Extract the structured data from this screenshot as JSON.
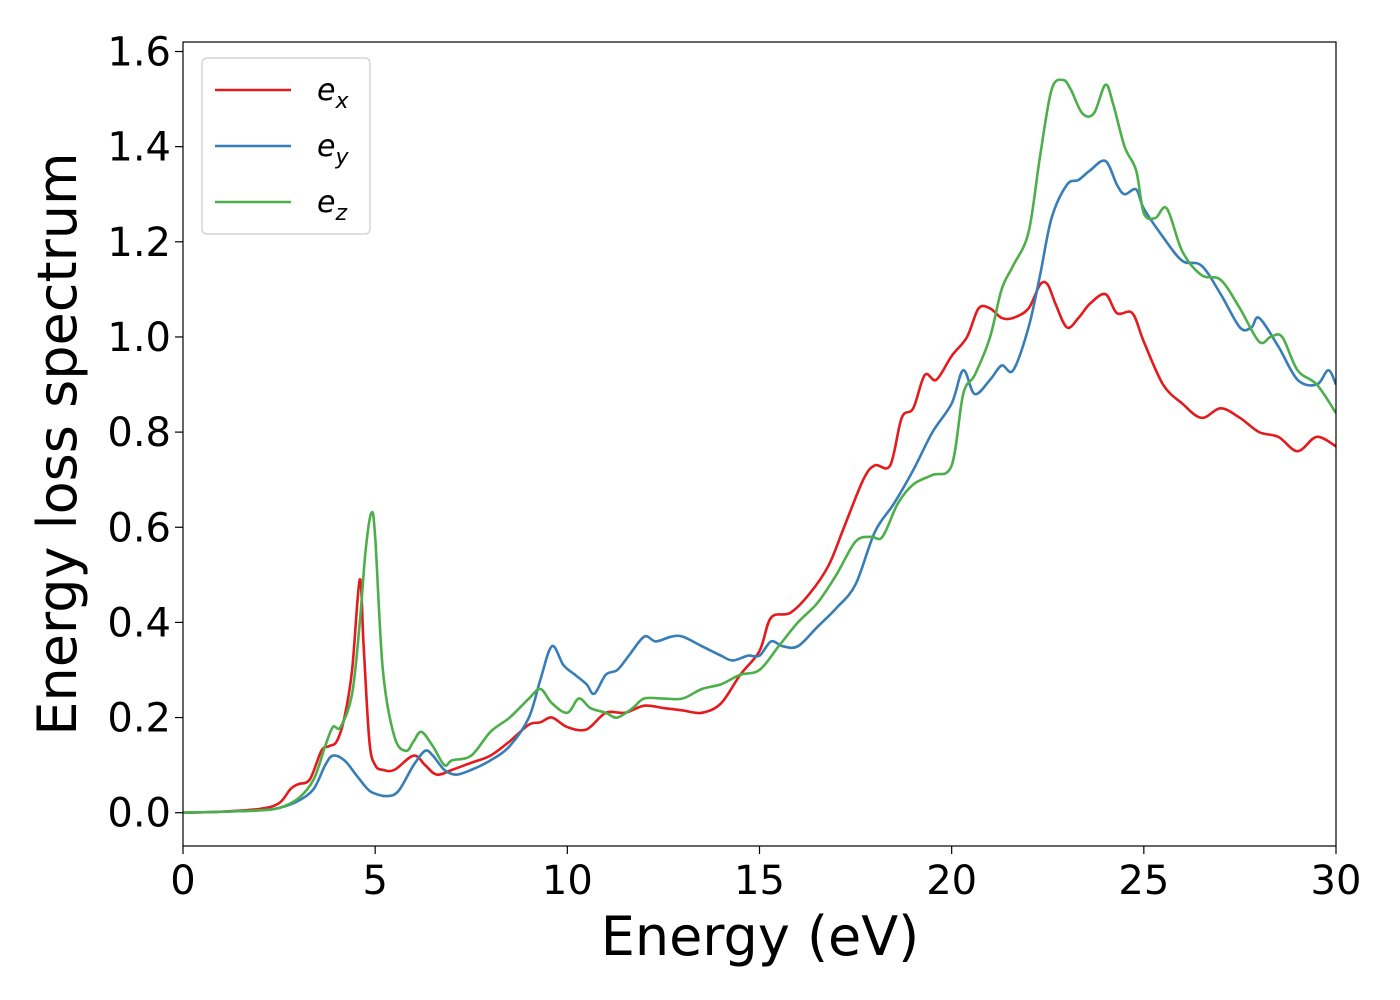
{
  "chart_data": {
    "type": "line",
    "title": "",
    "xlabel": "Energy (eV)",
    "ylabel": "Energy loss spectrum",
    "xlim": [
      0,
      30
    ],
    "ylim": [
      -0.07,
      1.62
    ],
    "xticks": [
      0,
      5,
      10,
      15,
      20,
      25,
      30
    ],
    "yticks": [
      0.0,
      0.2,
      0.4,
      0.6,
      0.8,
      1.0,
      1.2,
      1.4,
      1.6
    ],
    "xtick_labels": [
      "0",
      "5",
      "10",
      "15",
      "20",
      "25",
      "30"
    ],
    "ytick_labels": [
      "0.0",
      "0.2",
      "0.4",
      "0.6",
      "0.8",
      "1.0",
      "1.2",
      "1.4",
      "1.6"
    ],
    "grid": false,
    "legend": {
      "location": "upper-left",
      "frame": true
    },
    "series": [
      {
        "name": "e_x",
        "legend_main": "e",
        "legend_sub": "x",
        "color": "#e41a1c",
        "x": [
          0,
          1,
          2,
          2.5,
          2.8,
          3.0,
          3.3,
          3.6,
          3.8,
          4.0,
          4.2,
          4.4,
          4.6,
          4.7,
          4.85,
          5.0,
          5.2,
          5.5,
          6.0,
          6.3,
          6.6,
          7.0,
          7.5,
          8.0,
          8.5,
          9.0,
          9.3,
          9.6,
          10.0,
          10.5,
          11.0,
          11.5,
          12.0,
          12.5,
          13.0,
          13.5,
          14.0,
          14.5,
          15.0,
          15.3,
          15.8,
          16.3,
          16.8,
          17.2,
          17.7,
          18.0,
          18.4,
          18.7,
          19.0,
          19.3,
          19.6,
          20.0,
          20.4,
          20.7,
          21.0,
          21.3,
          21.6,
          22.0,
          22.3,
          22.5,
          22.7,
          23.0,
          23.3,
          23.6,
          24.0,
          24.3,
          24.7,
          25.0,
          25.5,
          26.0,
          26.5,
          27.0,
          27.5,
          28.0,
          28.5,
          29.0,
          29.5,
          30.0
        ],
        "values": [
          0.0,
          0.002,
          0.008,
          0.02,
          0.05,
          0.06,
          0.07,
          0.13,
          0.14,
          0.15,
          0.2,
          0.3,
          0.49,
          0.35,
          0.15,
          0.1,
          0.09,
          0.09,
          0.12,
          0.1,
          0.08,
          0.09,
          0.105,
          0.12,
          0.15,
          0.185,
          0.19,
          0.2,
          0.18,
          0.175,
          0.21,
          0.21,
          0.225,
          0.22,
          0.215,
          0.21,
          0.23,
          0.29,
          0.34,
          0.41,
          0.42,
          0.46,
          0.52,
          0.6,
          0.7,
          0.73,
          0.73,
          0.83,
          0.85,
          0.92,
          0.91,
          0.96,
          1.0,
          1.06,
          1.06,
          1.04,
          1.04,
          1.06,
          1.11,
          1.11,
          1.07,
          1.02,
          1.04,
          1.07,
          1.09,
          1.05,
          1.05,
          0.99,
          0.9,
          0.86,
          0.83,
          0.85,
          0.83,
          0.8,
          0.79,
          0.76,
          0.79,
          0.77
        ]
      },
      {
        "name": "e_y",
        "legend_main": "e",
        "legend_sub": "y",
        "color": "#377eb8",
        "x": [
          0,
          1,
          2,
          2.5,
          3.0,
          3.4,
          3.7,
          3.9,
          4.2,
          4.5,
          4.8,
          5.0,
          5.3,
          5.6,
          6.0,
          6.3,
          6.5,
          6.8,
          7.1,
          7.5,
          8.0,
          8.5,
          9.0,
          9.3,
          9.6,
          9.9,
          10.2,
          10.5,
          10.7,
          11.0,
          11.3,
          11.6,
          12.0,
          12.3,
          12.7,
          13.0,
          13.5,
          14.0,
          14.3,
          14.7,
          15.0,
          15.3,
          15.6,
          16.0,
          16.5,
          17.0,
          17.5,
          18.0,
          18.5,
          19.0,
          19.5,
          20.0,
          20.3,
          20.6,
          21.0,
          21.3,
          21.6,
          22.0,
          22.3,
          22.6,
          23.0,
          23.3,
          23.6,
          24.0,
          24.3,
          24.5,
          24.8,
          25.0,
          25.5,
          26.0,
          26.5,
          27.0,
          27.5,
          27.8,
          28.0,
          28.5,
          29.0,
          29.5,
          29.8,
          30.0
        ],
        "values": [
          0.0,
          0.002,
          0.005,
          0.01,
          0.025,
          0.05,
          0.1,
          0.12,
          0.11,
          0.08,
          0.05,
          0.04,
          0.035,
          0.045,
          0.1,
          0.13,
          0.12,
          0.09,
          0.08,
          0.09,
          0.11,
          0.14,
          0.2,
          0.28,
          0.35,
          0.31,
          0.29,
          0.27,
          0.25,
          0.29,
          0.3,
          0.33,
          0.37,
          0.36,
          0.37,
          0.37,
          0.35,
          0.33,
          0.32,
          0.33,
          0.33,
          0.36,
          0.35,
          0.35,
          0.39,
          0.43,
          0.48,
          0.59,
          0.65,
          0.72,
          0.8,
          0.86,
          0.93,
          0.88,
          0.91,
          0.94,
          0.93,
          1.02,
          1.13,
          1.25,
          1.32,
          1.33,
          1.35,
          1.37,
          1.32,
          1.3,
          1.31,
          1.27,
          1.21,
          1.16,
          1.15,
          1.09,
          1.02,
          1.02,
          1.04,
          0.98,
          0.91,
          0.9,
          0.93,
          0.9
        ]
      },
      {
        "name": "e_z",
        "legend_main": "e",
        "legend_sub": "z",
        "color": "#4daf4a",
        "x": [
          0,
          1,
          2,
          2.5,
          3.0,
          3.4,
          3.7,
          3.9,
          4.1,
          4.4,
          4.6,
          4.75,
          4.9,
          5.0,
          5.2,
          5.5,
          5.8,
          6.0,
          6.2,
          6.5,
          6.8,
          7.0,
          7.5,
          8.0,
          8.5,
          9.0,
          9.3,
          9.6,
          10.0,
          10.3,
          10.6,
          11.0,
          11.3,
          11.7,
          12.0,
          12.5,
          13.0,
          13.5,
          14.0,
          14.5,
          15.0,
          15.5,
          16.0,
          16.5,
          17.0,
          17.5,
          17.9,
          18.2,
          18.6,
          19.0,
          19.5,
          20.0,
          20.3,
          20.6,
          21.0,
          21.3,
          21.6,
          22.0,
          22.3,
          22.6,
          22.9,
          23.1,
          23.4,
          23.7,
          24.0,
          24.2,
          24.5,
          24.8,
          25.0,
          25.3,
          25.6,
          26.0,
          26.5,
          27.0,
          27.5,
          28.0,
          28.3,
          28.6,
          29.0,
          29.5,
          30.0
        ],
        "values": [
          0.0,
          0.002,
          0.005,
          0.01,
          0.03,
          0.07,
          0.14,
          0.18,
          0.18,
          0.25,
          0.4,
          0.55,
          0.63,
          0.58,
          0.3,
          0.16,
          0.13,
          0.15,
          0.17,
          0.14,
          0.1,
          0.11,
          0.12,
          0.17,
          0.2,
          0.24,
          0.26,
          0.23,
          0.21,
          0.24,
          0.22,
          0.21,
          0.2,
          0.22,
          0.24,
          0.24,
          0.24,
          0.26,
          0.27,
          0.29,
          0.3,
          0.35,
          0.4,
          0.44,
          0.5,
          0.57,
          0.58,
          0.58,
          0.65,
          0.69,
          0.71,
          0.73,
          0.88,
          0.92,
          1.0,
          1.1,
          1.15,
          1.22,
          1.38,
          1.52,
          1.54,
          1.52,
          1.47,
          1.47,
          1.53,
          1.49,
          1.4,
          1.35,
          1.26,
          1.25,
          1.27,
          1.18,
          1.13,
          1.12,
          1.06,
          0.99,
          1.0,
          1.0,
          0.93,
          0.9,
          0.84
        ]
      }
    ]
  }
}
